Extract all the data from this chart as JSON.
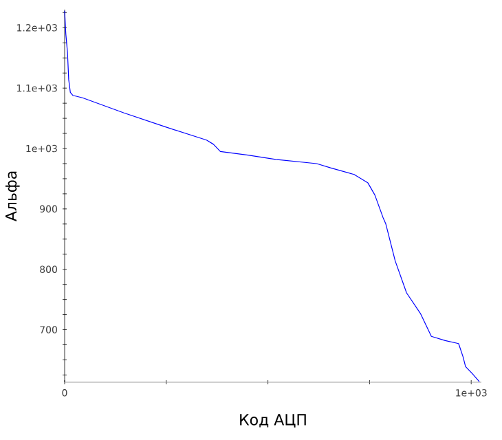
{
  "chart_data": {
    "type": "line",
    "xlabel": "Код АЦП",
    "ylabel": "Альфа",
    "xlim": [
      0,
      1025
    ],
    "ylim": [
      613,
      1230
    ],
    "xticks": [
      0,
      {
        "value": 250,
        "label": null
      },
      {
        "value": 500,
        "label": null
      },
      {
        "value": 750,
        "label": null
      },
      {
        "value": 1000,
        "label": "1e+03"
      }
    ],
    "yticks": [
      {
        "value": 625,
        "label": null
      },
      {
        "value": 650,
        "label": null
      },
      {
        "value": 675,
        "label": null
      },
      700,
      {
        "value": 725,
        "label": null
      },
      {
        "value": 750,
        "label": null
      },
      {
        "value": 775,
        "label": null
      },
      800,
      {
        "value": 825,
        "label": null
      },
      {
        "value": 850,
        "label": null
      },
      {
        "value": 875,
        "label": null
      },
      900,
      {
        "value": 925,
        "label": null
      },
      {
        "value": 950,
        "label": null
      },
      {
        "value": 975,
        "label": null
      },
      {
        "value": 1000,
        "label": "1e+03"
      },
      {
        "value": 1025,
        "label": null
      },
      {
        "value": 1050,
        "label": null
      },
      {
        "value": 1075,
        "label": null
      },
      {
        "value": 1100,
        "label": "1.1e+03"
      },
      {
        "value": 1125,
        "label": null
      },
      {
        "value": 1150,
        "label": null
      },
      {
        "value": 1175,
        "label": null
      },
      {
        "value": 1200,
        "label": "1.2e+03"
      },
      {
        "value": 1225,
        "label": null
      }
    ],
    "grid": false,
    "marker": "none",
    "line_style": "solid",
    "x": [
      0,
      3,
      7,
      10,
      14,
      20,
      44,
      146,
      247,
      349,
      366,
      383,
      451,
      519,
      620,
      654,
      712,
      746,
      763,
      783,
      790,
      813,
      841,
      875,
      902,
      936,
      969,
      980,
      986,
      1003,
      1020
    ],
    "series": [
      {
        "color": "#0000ff",
        "values": [
          1228,
          1189,
          1159,
          1114,
          1093,
          1088,
          1084,
          1059,
          1036,
          1014,
          1007,
          995,
          989,
          982,
          975,
          968,
          957,
          943,
          923,
          886,
          875,
          814,
          761,
          727,
          689,
          682,
          677,
          655,
          639,
          627,
          614
        ]
      }
    ]
  }
}
